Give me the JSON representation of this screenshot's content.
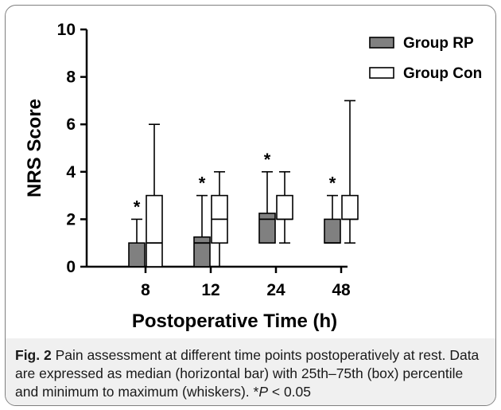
{
  "chart_data": {
    "type": "box",
    "xlabel": "Postoperative Time (h)",
    "ylabel": "NRS Score",
    "ylim": [
      0,
      10
    ],
    "yticks": [
      0,
      2,
      4,
      6,
      8,
      10
    ],
    "categories": [
      "8",
      "12",
      "24",
      "48"
    ],
    "legend_position": "top-right",
    "series": [
      {
        "name": "Group RP",
        "fill": "#808080",
        "boxes": [
          {
            "min": 0,
            "q1": 0,
            "median": 0,
            "q3": 1,
            "max": 2,
            "annotation": "*"
          },
          {
            "min": 0,
            "q1": 0,
            "median": 1,
            "q3": 1.25,
            "max": 3,
            "annotation": "*"
          },
          {
            "min": 1,
            "q1": 1,
            "median": 2,
            "q3": 2.25,
            "max": 4,
            "annotation": "*"
          },
          {
            "min": 1,
            "q1": 1,
            "median": 1,
            "q3": 2,
            "max": 3,
            "annotation": "*"
          }
        ]
      },
      {
        "name": "Group Con",
        "fill": "#ffffff",
        "boxes": [
          {
            "min": 0,
            "q1": 0,
            "median": 1,
            "q3": 3,
            "max": 6
          },
          {
            "min": 0,
            "q1": 1,
            "median": 2,
            "q3": 3,
            "max": 4
          },
          {
            "min": 1,
            "q1": 2,
            "median": 2,
            "q3": 3,
            "max": 4
          },
          {
            "min": 1,
            "q1": 2,
            "median": 2,
            "q3": 3,
            "max": 7
          }
        ]
      }
    ]
  },
  "caption": {
    "label": "Fig. 2",
    "text": " Pain assessment at different time points postoperatively at rest. Data are expressed as median (horizontal bar) with 25th–75th (box) percentile and minimum to maximum (whiskers). *",
    "p_symbol": "P",
    "p_value": " < 0.05"
  }
}
